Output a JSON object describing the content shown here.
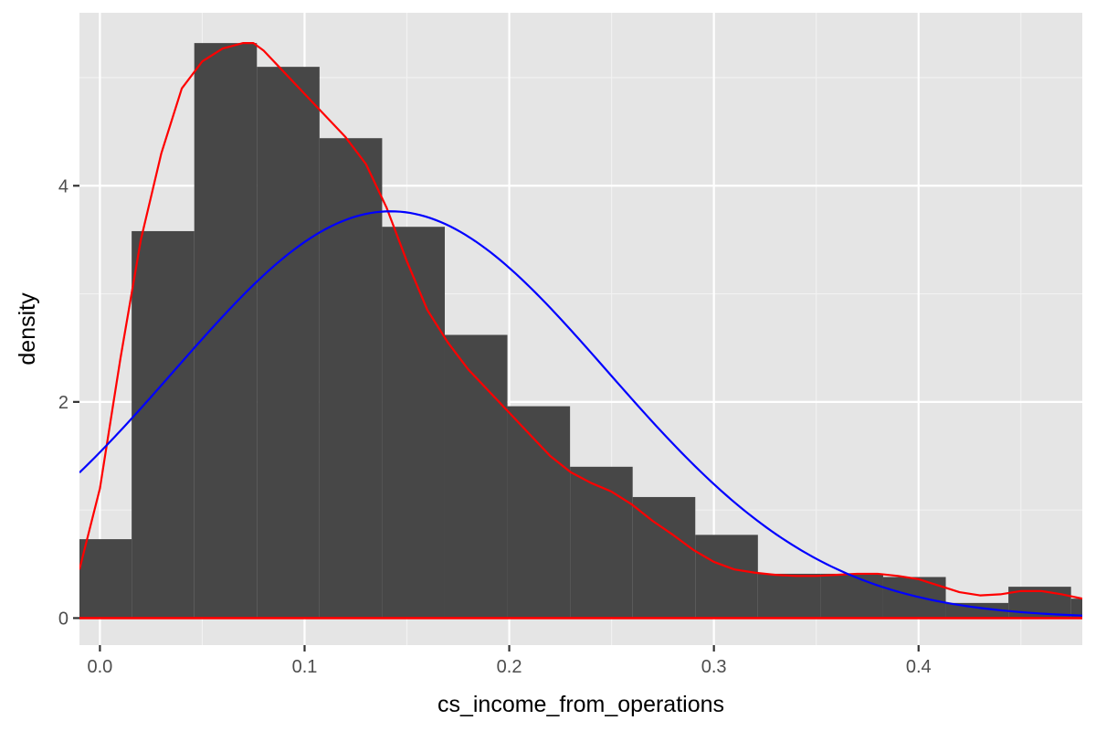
{
  "chart_data": {
    "type": "histogram",
    "title": "",
    "xlabel": "cs_income_from_operations",
    "ylabel": "density",
    "xlim": [
      -0.01,
      0.48
    ],
    "ylim": [
      -0.25,
      5.6
    ],
    "x_ticks": [
      0.0,
      0.1,
      0.2,
      0.3,
      0.4
    ],
    "x_tick_labels": [
      "0.0",
      "0.1",
      "0.2",
      "0.3",
      "0.4"
    ],
    "y_ticks": [
      0,
      2,
      4
    ],
    "y_tick_labels": [
      "0",
      "2",
      "4"
    ],
    "grid": true,
    "legend": "none",
    "histogram": {
      "bin_width": 0.0306,
      "bin_starts": [
        -0.0151,
        0.0155,
        0.0461,
        0.0767,
        0.1073,
        0.1379,
        0.1685,
        0.1991,
        0.2297,
        0.2603,
        0.2909,
        0.3215,
        0.3521,
        0.3827,
        0.4133,
        0.4439,
        0.4745
      ],
      "values": [
        0.73,
        3.58,
        5.32,
        5.1,
        4.44,
        3.62,
        2.62,
        1.96,
        1.4,
        1.12,
        0.77,
        0.41,
        0.41,
        0.38,
        0.14,
        0.29,
        0.18
      ],
      "color": "#474747"
    },
    "series": [
      {
        "type": "density_line",
        "color": "#ff0000",
        "x": [
          -0.01,
          0.0,
          0.01,
          0.02,
          0.03,
          0.04,
          0.05,
          0.06,
          0.07,
          0.075,
          0.08,
          0.09,
          0.1,
          0.11,
          0.12,
          0.13,
          0.14,
          0.15,
          0.16,
          0.17,
          0.18,
          0.19,
          0.2,
          0.21,
          0.22,
          0.23,
          0.24,
          0.25,
          0.26,
          0.27,
          0.28,
          0.29,
          0.3,
          0.31,
          0.32,
          0.33,
          0.34,
          0.35,
          0.36,
          0.37,
          0.38,
          0.39,
          0.4,
          0.41,
          0.42,
          0.43,
          0.44,
          0.45,
          0.46,
          0.47,
          0.48
        ],
        "y": [
          0.45,
          1.2,
          2.4,
          3.5,
          4.3,
          4.9,
          5.15,
          5.27,
          5.32,
          5.32,
          5.25,
          5.05,
          4.85,
          4.65,
          4.45,
          4.2,
          3.8,
          3.3,
          2.85,
          2.55,
          2.3,
          2.1,
          1.9,
          1.7,
          1.5,
          1.35,
          1.25,
          1.17,
          1.05,
          0.9,
          0.77,
          0.63,
          0.52,
          0.45,
          0.42,
          0.4,
          0.39,
          0.39,
          0.4,
          0.41,
          0.41,
          0.39,
          0.36,
          0.3,
          0.24,
          0.21,
          0.22,
          0.25,
          0.25,
          0.22,
          0.18
        ]
      },
      {
        "type": "normal_curve",
        "color": "#0000ff",
        "mean": 0.142,
        "sd": 0.106
      },
      {
        "type": "baseline",
        "color": "#ff0000",
        "y": 0
      }
    ]
  }
}
